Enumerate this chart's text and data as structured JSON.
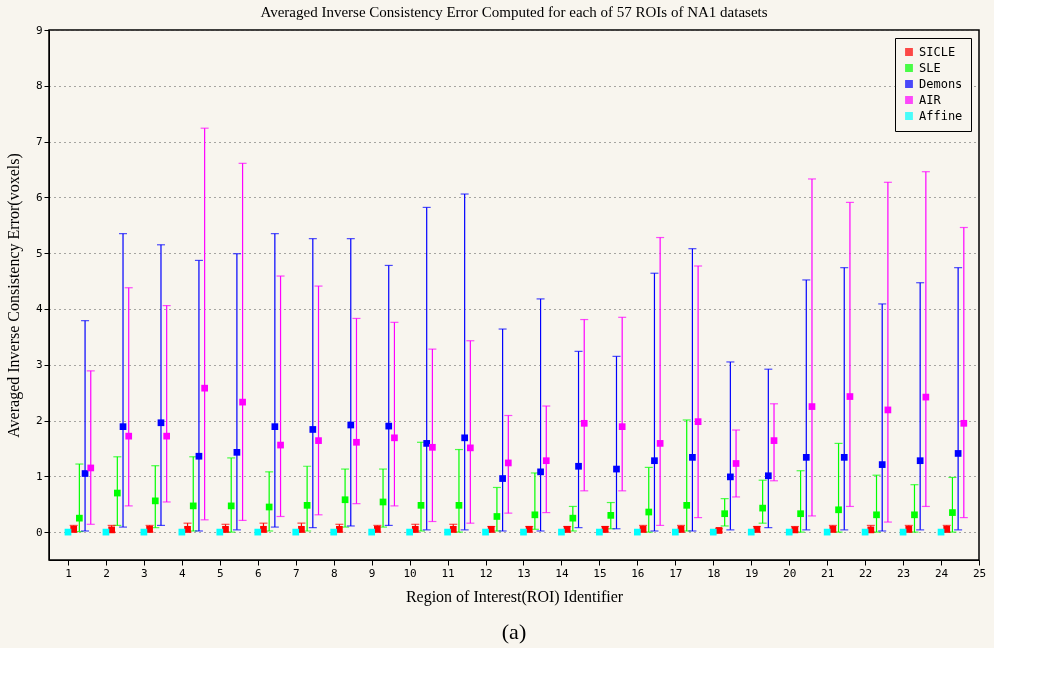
{
  "chart_data": {
    "type": "scatter",
    "title": "Averaged Inverse Consistency Error Computed for each of 57 ROIs of NA1 datasets",
    "xlabel": "Region of Interest(ROI) Identifier",
    "ylabel": "Averaged Inverse Consistency Error(voxels)",
    "xlim": [
      0.5,
      25
    ],
    "xticks": [
      1,
      2,
      3,
      4,
      5,
      6,
      7,
      8,
      9,
      10,
      11,
      12,
      13,
      14,
      15,
      16,
      17,
      18,
      19,
      20,
      21,
      22,
      23,
      24,
      25
    ],
    "ylim": [
      -0.5,
      9
    ],
    "yticks": [
      0,
      1,
      2,
      3,
      4,
      5,
      6,
      7,
      8,
      9
    ],
    "grid": "y",
    "legend": "top right",
    "marker": "square",
    "annotations": [
      "(a)"
    ],
    "series": [
      {
        "name": "SICLE",
        "color": "#ff0000",
        "x": [
          1.15,
          2.15,
          3.15,
          4.15,
          5.15,
          6.15,
          7.15,
          8.15,
          9.15,
          10.15,
          11.15,
          12.15,
          13.15,
          14.15,
          15.15,
          16.15,
          17.15,
          18.15,
          19.15,
          20.15,
          21.15,
          22.15,
          23.15,
          24.15
        ],
        "values": [
          0.05,
          0.04,
          0.05,
          0.05,
          0.05,
          0.05,
          0.05,
          0.05,
          0.05,
          0.05,
          0.05,
          0.05,
          0.05,
          0.05,
          0.05,
          0.05,
          0.05,
          0.03,
          0.05,
          0.04,
          0.05,
          0.04,
          0.05,
          0.05
        ],
        "errors": [
          [
            0,
            0.12
          ],
          [
            0,
            0.12
          ],
          [
            0,
            0.12
          ],
          [
            0,
            0.16
          ],
          [
            0,
            0.14
          ],
          [
            0,
            0.16
          ],
          [
            0,
            0.16
          ],
          [
            0,
            0.14
          ],
          [
            0,
            0.12
          ],
          [
            0,
            0.14
          ],
          [
            0,
            0.14
          ],
          [
            0,
            0.1
          ],
          [
            0,
            0.1
          ],
          [
            0,
            0.1
          ],
          [
            0,
            0.1
          ],
          [
            0,
            0.12
          ],
          [
            0,
            0.12
          ],
          [
            0,
            0.06
          ],
          [
            0,
            0.1
          ],
          [
            0,
            0.1
          ],
          [
            0,
            0.12
          ],
          [
            0,
            0.12
          ],
          [
            0,
            0.12
          ],
          [
            0,
            0.12
          ]
        ]
      },
      {
        "name": "SLE",
        "color": "#00ff00",
        "x": [
          1.3,
          2.3,
          3.3,
          4.3,
          5.3,
          6.3,
          7.3,
          8.3,
          9.3,
          10.3,
          11.3,
          12.3,
          13.3,
          14.3,
          15.3,
          16.3,
          17.3,
          18.3,
          19.3,
          20.3,
          21.3,
          22.3,
          23.3,
          24.3
        ],
        "values": [
          0.25,
          0.7,
          0.56,
          0.47,
          0.47,
          0.45,
          0.48,
          0.58,
          0.54,
          0.48,
          0.48,
          0.28,
          0.31,
          0.25,
          0.3,
          0.36,
          0.48,
          0.33,
          0.43,
          0.33,
          0.4,
          0.31,
          0.31,
          0.35
        ],
        "errors": [
          [
            0.01,
            1.22
          ],
          [
            0.12,
            1.35
          ],
          [
            0.08,
            1.19
          ],
          [
            0.02,
            1.35
          ],
          [
            0,
            1.33
          ],
          [
            0.02,
            1.08
          ],
          [
            0.02,
            1.18
          ],
          [
            0.09,
            1.13
          ],
          [
            0.09,
            1.13
          ],
          [
            0.02,
            1.61
          ],
          [
            0,
            1.48
          ],
          [
            0.02,
            0.8
          ],
          [
            0.05,
            1.06
          ],
          [
            0.02,
            0.46
          ],
          [
            0.06,
            0.53
          ],
          [
            0,
            1.16
          ],
          [
            0.02,
            2.01
          ],
          [
            0.11,
            0.6
          ],
          [
            0.16,
            0.93
          ],
          [
            0,
            1.1
          ],
          [
            0,
            1.59
          ],
          [
            0,
            1.02
          ],
          [
            0,
            0.85
          ],
          [
            0,
            0.98
          ]
        ]
      },
      {
        "name": "Demons",
        "color": "#0000ff",
        "x": [
          1.45,
          2.45,
          3.45,
          4.45,
          5.45,
          6.45,
          7.45,
          8.45,
          9.45,
          10.45,
          11.45,
          12.45,
          13.45,
          14.45,
          15.45,
          16.45,
          17.45,
          18.45,
          19.45,
          20.45,
          21.45,
          22.45,
          23.45,
          24.45
        ],
        "values": [
          1.05,
          1.89,
          1.96,
          1.36,
          1.43,
          1.89,
          1.84,
          1.92,
          1.9,
          1.59,
          1.69,
          0.96,
          1.08,
          1.18,
          1.13,
          1.28,
          1.34,
          0.99,
          1.01,
          1.34,
          1.34,
          1.21,
          1.28,
          1.41
        ],
        "errors": [
          [
            0.02,
            3.79
          ],
          [
            0.09,
            5.35
          ],
          [
            0.12,
            5.15
          ],
          [
            0.02,
            4.87
          ],
          [
            0.04,
            4.99
          ],
          [
            0.09,
            5.35
          ],
          [
            0.08,
            5.26
          ],
          [
            0.11,
            5.26
          ],
          [
            0.12,
            4.78
          ],
          [
            0.04,
            5.82
          ],
          [
            0.04,
            6.06
          ],
          [
            0.02,
            3.64
          ],
          [
            0.02,
            4.18
          ],
          [
            0.08,
            3.24
          ],
          [
            0.06,
            3.15
          ],
          [
            0.02,
            4.64
          ],
          [
            0.02,
            5.08
          ],
          [
            0.04,
            3.05
          ],
          [
            0.08,
            2.92
          ],
          [
            0.04,
            4.52
          ],
          [
            0.04,
            4.74
          ],
          [
            0.02,
            4.09
          ],
          [
            0.04,
            4.47
          ],
          [
            0.04,
            4.74
          ]
        ]
      },
      {
        "name": "AIR",
        "color": "#ff00ff",
        "x": [
          1.6,
          2.6,
          3.6,
          4.6,
          5.6,
          6.6,
          7.6,
          8.6,
          9.6,
          10.6,
          11.6,
          12.6,
          13.6,
          14.6,
          15.6,
          16.6,
          17.6,
          18.6,
          19.6,
          20.6,
          21.6,
          22.6,
          23.6,
          24.6
        ],
        "values": [
          1.15,
          1.72,
          1.72,
          2.58,
          2.33,
          1.56,
          1.64,
          1.61,
          1.69,
          1.52,
          1.51,
          1.24,
          1.28,
          1.95,
          1.89,
          1.59,
          1.98,
          1.23,
          1.64,
          2.25,
          2.43,
          2.19,
          2.42,
          1.95
        ],
        "errors": [
          [
            0.14,
            2.89
          ],
          [
            0.47,
            4.38
          ],
          [
            0.54,
            4.06
          ],
          [
            0.22,
            7.24
          ],
          [
            0.21,
            6.61
          ],
          [
            0.28,
            4.59
          ],
          [
            0.31,
            4.41
          ],
          [
            0.51,
            3.83
          ],
          [
            0.47,
            3.76
          ],
          [
            0.19,
            3.28
          ],
          [
            0.16,
            3.43
          ],
          [
            0.34,
            2.09
          ],
          [
            0.35,
            2.26
          ],
          [
            0.74,
            3.81
          ],
          [
            0.74,
            3.85
          ],
          [
            0.12,
            5.28
          ],
          [
            0.26,
            4.77
          ],
          [
            0.63,
            1.83
          ],
          [
            0.92,
            2.3
          ],
          [
            0.29,
            6.33
          ],
          [
            0.46,
            5.91
          ],
          [
            0.18,
            6.27
          ],
          [
            0.46,
            6.46
          ],
          [
            0.26,
            5.46
          ]
        ]
      },
      {
        "name": "Affine",
        "color": "#00ffff",
        "x": [
          1,
          2,
          3,
          4,
          5,
          6,
          7,
          8,
          9,
          10,
          11,
          12,
          13,
          14,
          15,
          16,
          17,
          18,
          19,
          20,
          21,
          22,
          23,
          24
        ],
        "values": [
          0,
          0,
          0,
          0,
          0,
          0,
          0,
          0,
          0,
          0,
          0,
          0,
          0,
          0,
          0,
          0,
          0,
          0,
          0,
          0,
          0,
          0,
          0,
          0
        ]
      }
    ]
  }
}
